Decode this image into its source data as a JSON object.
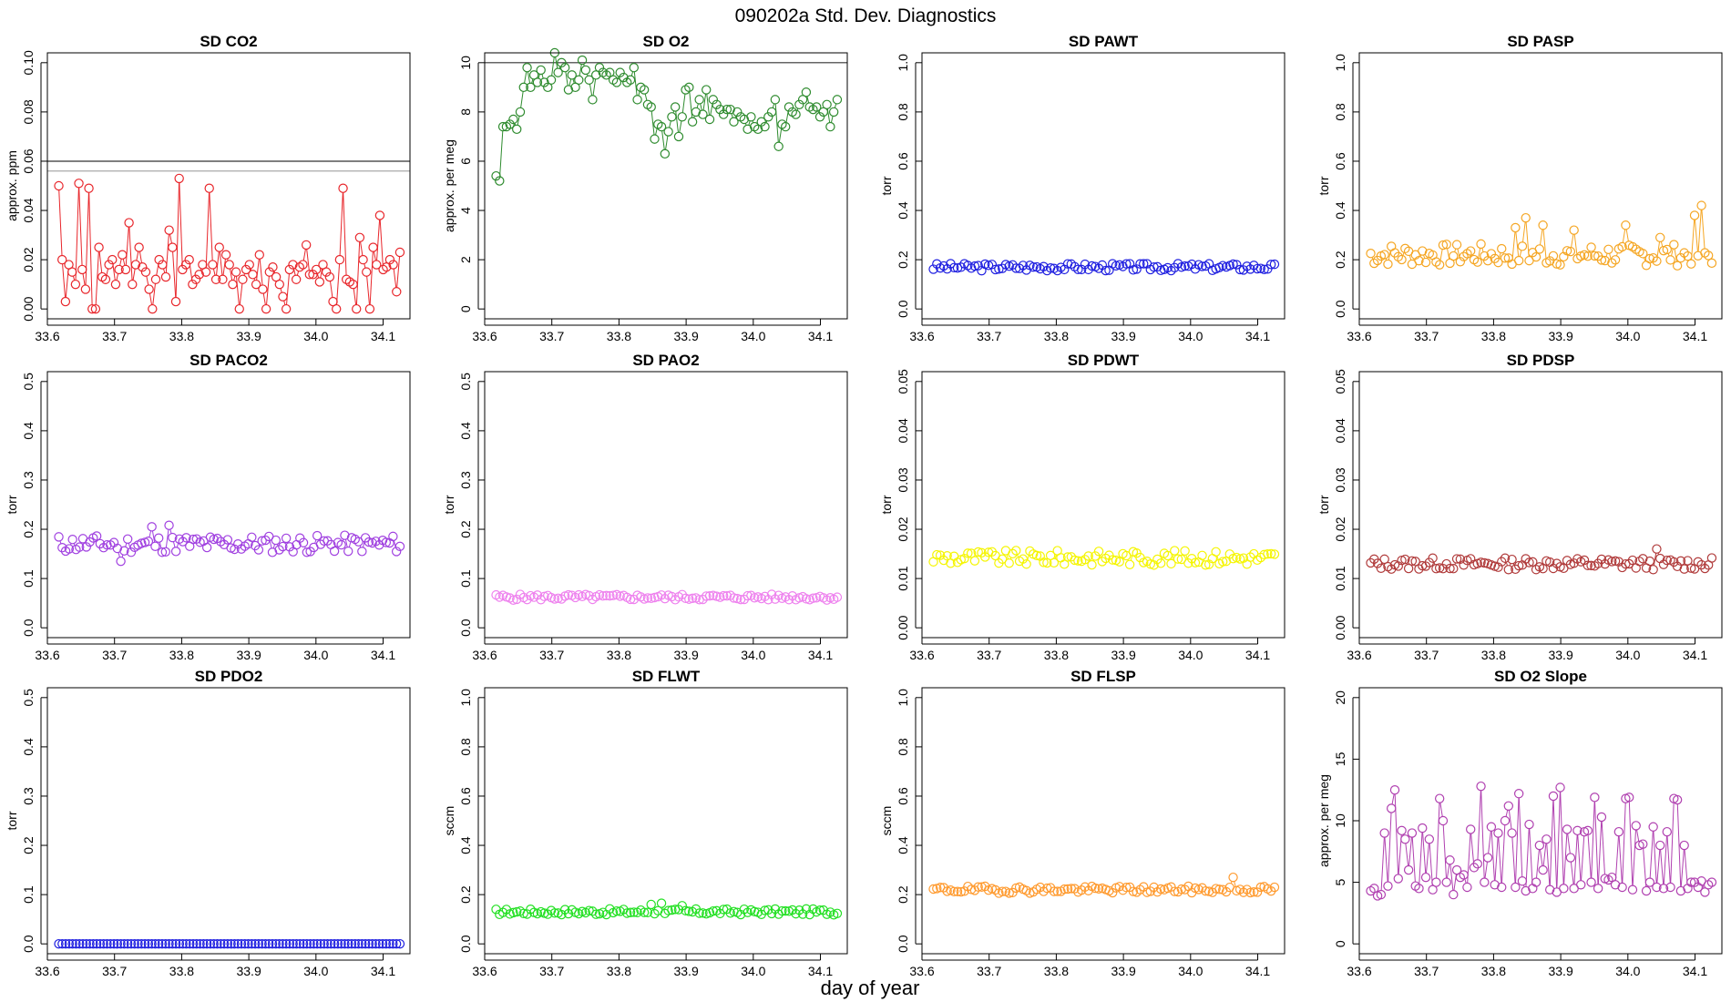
{
  "figure": {
    "title": "090202a   Std. Dev. Diagnostics",
    "xlabel": "day of year"
  },
  "chart_data": [
    {
      "id": "sd-co2",
      "type": "line",
      "title": "SD CO2",
      "ylabel": "approx. ppm",
      "color": "#e8262b",
      "xlim": [
        33.6,
        34.14
      ],
      "ylim": [
        0,
        0.1
      ],
      "xticks": [
        33.6,
        33.7,
        33.8,
        33.9,
        34.0,
        34.1
      ],
      "yticks": [
        0,
        0.02,
        0.04,
        0.06,
        0.08,
        0.1
      ],
      "ytick_labels": [
        "0.00",
        "0.02",
        "0.04",
        "0.06",
        "0.08",
        "0.10"
      ],
      "hlines": [
        {
          "y": 0.06,
          "color": "#333333"
        },
        {
          "y": 0.056,
          "color": "#aaaaaa"
        }
      ],
      "series": {
        "x_start": 33.617,
        "x_end": 34.125,
        "values": [
          0.05,
          0.02,
          0.003,
          0.018,
          0.015,
          0.01,
          0.051,
          0.016,
          0.008,
          0.049,
          0.0,
          0.0,
          0.025,
          0.013,
          0.012,
          0.018,
          0.02,
          0.01,
          0.016,
          0.022,
          0.016,
          0.035,
          0.01,
          0.018,
          0.025,
          0.017,
          0.015,
          0.008,
          0.0,
          0.012,
          0.02,
          0.018,
          0.013,
          0.032,
          0.025,
          0.003,
          0.053,
          0.016,
          0.018,
          0.02,
          0.01,
          0.012,
          0.014,
          0.018,
          0.015,
          0.049,
          0.018,
          0.012,
          0.025,
          0.012,
          0.022,
          0.018,
          0.01,
          0.015,
          0.0,
          0.012,
          0.016,
          0.018,
          0.014,
          0.01,
          0.022,
          0.008,
          0.0,
          0.015,
          0.017,
          0.013,
          0.01,
          0.005,
          0.0,
          0.016,
          0.018,
          0.012,
          0.017,
          0.018,
          0.026,
          0.014,
          0.014,
          0.016,
          0.011,
          0.018,
          0.015,
          0.013,
          0.003,
          0.0,
          0.02,
          0.049,
          0.012,
          0.011,
          0.01,
          0.0,
          0.029,
          0.02,
          0.015,
          0.0,
          0.025,
          0.018,
          0.038,
          0.016,
          0.017,
          0.02,
          0.018,
          0.007,
          0.023
        ]
      }
    },
    {
      "id": "sd-o2",
      "type": "line",
      "title": "SD O2",
      "ylabel": "approx. per meg",
      "color": "#2e8b2e",
      "xlim": [
        33.6,
        34.14
      ],
      "ylim": [
        0,
        10
      ],
      "xticks": [
        33.6,
        33.7,
        33.8,
        33.9,
        34.0,
        34.1
      ],
      "yticks": [
        0,
        2,
        4,
        6,
        8,
        10
      ],
      "ytick_labels": [
        "0",
        "2",
        "4",
        "6",
        "8",
        "10"
      ],
      "hlines": [
        {
          "y": 10,
          "color": "#333333"
        }
      ],
      "series": {
        "x_start": 33.617,
        "x_end": 34.125,
        "values": [
          5.4,
          5.2,
          7.4,
          7.4,
          7.5,
          7.7,
          7.3,
          8.0,
          9.0,
          9.8,
          9.0,
          9.5,
          9.2,
          9.7,
          9.2,
          9.0,
          9.3,
          10.4,
          9.6,
          10.0,
          9.8,
          8.9,
          9.5,
          9.0,
          9.3,
          10.1,
          9.7,
          9.3,
          8.5,
          9.5,
          9.8,
          9.6,
          9.5,
          9.6,
          9.3,
          9.2,
          9.6,
          9.4,
          9.2,
          9.3,
          9.8,
          8.5,
          9.0,
          8.9,
          8.3,
          8.2,
          6.9,
          7.5,
          7.4,
          6.3,
          7.2,
          7.8,
          8.2,
          7.0,
          7.8,
          8.9,
          9.0,
          7.6,
          8.0,
          8.5,
          7.9,
          8.9,
          7.7,
          8.5,
          8.3,
          8.1,
          7.9,
          8.1,
          8.1,
          7.6,
          8.0,
          7.8,
          7.7,
          7.3,
          7.8,
          7.4,
          7.3,
          7.6,
          7.4,
          7.8,
          8.0,
          8.5,
          6.6,
          7.5,
          7.4,
          8.2,
          8.0,
          7.9,
          8.3,
          8.5,
          8.8,
          8.2,
          8.1,
          8.2,
          7.8,
          8.0,
          8.3,
          7.4,
          8.0,
          8.5
        ]
      }
    },
    {
      "id": "sd-pawt",
      "type": "line",
      "title": "SD PAWT",
      "ylabel": "torr",
      "color": "#1f1fe0",
      "xlim": [
        33.6,
        34.14
      ],
      "ylim": [
        0,
        1
      ],
      "xticks": [
        33.6,
        33.7,
        33.8,
        33.9,
        34.0,
        34.1
      ],
      "yticks": [
        0,
        0.2,
        0.4,
        0.6,
        0.8,
        1.0
      ],
      "ytick_labels": [
        "0.0",
        "0.2",
        "0.4",
        "0.6",
        "0.8",
        "1.0"
      ],
      "hlines": [],
      "series": {
        "x_start": 33.617,
        "x_end": 34.125,
        "gen": {
          "base": 0.17,
          "noise": 0.015,
          "seed": 3
        }
      }
    },
    {
      "id": "sd-pasp",
      "type": "line",
      "title": "SD PASP",
      "ylabel": "torr",
      "color": "#f5a623",
      "xlim": [
        33.6,
        34.14
      ],
      "ylim": [
        0,
        1
      ],
      "xticks": [
        33.6,
        33.7,
        33.8,
        33.9,
        34.0,
        34.1
      ],
      "yticks": [
        0,
        0.2,
        0.4,
        0.6,
        0.8,
        1.0
      ],
      "ytick_labels": [
        "0.0",
        "0.2",
        "0.4",
        "0.6",
        "0.8",
        "1.0"
      ],
      "hlines": [],
      "series": {
        "x_start": 33.617,
        "x_end": 34.125,
        "gen": {
          "base": 0.22,
          "noise": 0.045,
          "seed": 7,
          "spikes": [
            [
              0.42,
              0.33
            ],
            [
              0.45,
              0.37
            ],
            [
              0.5,
              0.34
            ],
            [
              0.6,
              0.32
            ],
            [
              0.75,
              0.34
            ],
            [
              0.85,
              0.29
            ],
            [
              0.95,
              0.38
            ],
            [
              0.97,
              0.42
            ]
          ]
        }
      }
    },
    {
      "id": "sd-paco2",
      "type": "line",
      "title": "SD PACO2",
      "ylabel": "torr",
      "color": "#a040e0",
      "xlim": [
        33.6,
        34.14
      ],
      "ylim": [
        0,
        0.5
      ],
      "xticks": [
        33.6,
        33.7,
        33.8,
        33.9,
        34.0,
        34.1
      ],
      "yticks": [
        0,
        0.1,
        0.2,
        0.3,
        0.4,
        0.5
      ],
      "ytick_labels": [
        "0.0",
        "0.1",
        "0.2",
        "0.3",
        "0.4",
        "0.5"
      ],
      "hlines": [],
      "series": {
        "x_start": 33.617,
        "x_end": 34.125,
        "gen": {
          "base": 0.17,
          "noise": 0.018,
          "seed": 11,
          "spikes": [
            [
              0.27,
              0.205
            ],
            [
              0.32,
              0.208
            ],
            [
              0.18,
              0.135
            ]
          ]
        }
      }
    },
    {
      "id": "sd-pao2",
      "type": "line",
      "title": "SD PAO2",
      "ylabel": "torr",
      "color": "#ee82ee",
      "xlim": [
        33.6,
        34.14
      ],
      "ylim": [
        0,
        0.5
      ],
      "xticks": [
        33.6,
        33.7,
        33.8,
        33.9,
        34.0,
        34.1
      ],
      "yticks": [
        0,
        0.1,
        0.2,
        0.3,
        0.4,
        0.5
      ],
      "ytick_labels": [
        "0.0",
        "0.1",
        "0.2",
        "0.3",
        "0.4",
        "0.5"
      ],
      "hlines": [],
      "series": {
        "x_start": 33.617,
        "x_end": 34.125,
        "gen": {
          "base": 0.062,
          "noise": 0.006,
          "seed": 5
        }
      }
    },
    {
      "id": "sd-pdwt",
      "type": "line",
      "title": "SD PDWT",
      "ylabel": "torr",
      "color": "#f5f500",
      "xlim": [
        33.6,
        34.14
      ],
      "ylim": [
        0,
        0.05
      ],
      "xticks": [
        33.6,
        33.7,
        33.8,
        33.9,
        34.0,
        34.1
      ],
      "yticks": [
        0,
        0.01,
        0.02,
        0.03,
        0.04,
        0.05
      ],
      "ytick_labels": [
        "0.00",
        "0.01",
        "0.02",
        "0.03",
        "0.04",
        "0.05"
      ],
      "hlines": [],
      "series": {
        "x_start": 33.617,
        "x_end": 34.125,
        "gen": {
          "base": 0.0142,
          "noise": 0.0015,
          "seed": 9
        }
      }
    },
    {
      "id": "sd-pdsp",
      "type": "line",
      "title": "SD PDSP",
      "ylabel": "torr",
      "color": "#b03a3a",
      "xlim": [
        33.6,
        34.14
      ],
      "ylim": [
        0,
        0.05
      ],
      "xticks": [
        33.6,
        33.7,
        33.8,
        33.9,
        34.0,
        34.1
      ],
      "yticks": [
        0,
        0.01,
        0.02,
        0.03,
        0.04,
        0.05
      ],
      "ytick_labels": [
        "0.00",
        "0.01",
        "0.02",
        "0.03",
        "0.04",
        "0.05"
      ],
      "hlines": [],
      "series": {
        "x_start": 33.617,
        "x_end": 34.125,
        "gen": {
          "base": 0.013,
          "noise": 0.0012,
          "seed": 13,
          "spikes": [
            [
              0.84,
              0.016
            ]
          ]
        }
      }
    },
    {
      "id": "sd-pdo2",
      "type": "line",
      "title": "SD PDO2",
      "ylabel": "torr",
      "color": "#1f1fe0",
      "xlim": [
        33.6,
        34.14
      ],
      "ylim": [
        0,
        0.5
      ],
      "xticks": [
        33.6,
        33.7,
        33.8,
        33.9,
        34.0,
        34.1
      ],
      "yticks": [
        0,
        0.1,
        0.2,
        0.3,
        0.4,
        0.5
      ],
      "ytick_labels": [
        "0.0",
        "0.1",
        "0.2",
        "0.3",
        "0.4",
        "0.5"
      ],
      "hlines": [],
      "series": {
        "x_start": 33.617,
        "x_end": 34.125,
        "gen": {
          "base": 0.0,
          "noise": 0.0,
          "seed": 1
        }
      }
    },
    {
      "id": "sd-flwt",
      "type": "line",
      "title": "SD FLWT",
      "ylabel": "sccm",
      "color": "#22e022",
      "xlim": [
        33.6,
        34.14
      ],
      "ylim": [
        0,
        1
      ],
      "xticks": [
        33.6,
        33.7,
        33.8,
        33.9,
        34.0,
        34.1
      ],
      "yticks": [
        0,
        0.2,
        0.4,
        0.6,
        0.8,
        1.0
      ],
      "ytick_labels": [
        "0.0",
        "0.2",
        "0.4",
        "0.6",
        "0.8",
        "1.0"
      ],
      "hlines": [],
      "series": {
        "x_start": 33.617,
        "x_end": 34.125,
        "gen": {
          "base": 0.13,
          "noise": 0.012,
          "seed": 17,
          "spikes": [
            [
              0.45,
              0.16
            ],
            [
              0.48,
              0.165
            ],
            [
              0.55,
              0.155
            ]
          ]
        }
      }
    },
    {
      "id": "sd-flsp",
      "type": "line",
      "title": "SD FLSP",
      "ylabel": "sccm",
      "color": "#ff9a2e",
      "xlim": [
        33.6,
        34.14
      ],
      "ylim": [
        0,
        1
      ],
      "xticks": [
        33.6,
        33.7,
        33.8,
        33.9,
        34.0,
        34.1
      ],
      "yticks": [
        0,
        0.2,
        0.4,
        0.6,
        0.8,
        1.0
      ],
      "ytick_labels": [
        "0.0",
        "0.2",
        "0.4",
        "0.6",
        "0.8",
        "1.0"
      ],
      "hlines": [],
      "series": {
        "x_start": 33.617,
        "x_end": 34.125,
        "gen": {
          "base": 0.22,
          "noise": 0.014,
          "seed": 19,
          "spikes": [
            [
              0.88,
              0.27
            ]
          ]
        }
      }
    },
    {
      "id": "sd-o2-slope",
      "type": "line",
      "title": "SD O2 Slope",
      "ylabel": "approx. per meg",
      "color": "#b040b0",
      "xlim": [
        33.6,
        34.14
      ],
      "ylim": [
        0,
        20
      ],
      "xticks": [
        33.6,
        33.7,
        33.8,
        33.9,
        34.0,
        34.1
      ],
      "yticks": [
        0,
        5,
        10,
        15,
        20
      ],
      "ytick_labels": [
        "0",
        "5",
        "10",
        "15",
        "20"
      ],
      "hlines": [],
      "series": {
        "x_start": 33.617,
        "x_end": 34.125,
        "values": [
          4.3,
          4.5,
          3.9,
          4.0,
          9.0,
          4.7,
          11.0,
          12.5,
          5.3,
          9.2,
          8.5,
          6.0,
          9.0,
          4.7,
          4.5,
          9.4,
          5.4,
          8.5,
          4.4,
          5.0,
          11.8,
          10.0,
          5.0,
          6.8,
          4.0,
          6.0,
          5.4,
          5.6,
          4.6,
          9.3,
          6.2,
          6.5,
          12.8,
          5.0,
          7.0,
          9.5,
          4.8,
          9.0,
          4.6,
          10.0,
          11.2,
          9.0,
          4.6,
          12.2,
          5.1,
          4.3,
          9.7,
          4.5,
          5.0,
          8.0,
          6.0,
          8.5,
          4.4,
          12.0,
          4.2,
          12.7,
          4.5,
          9.3,
          7.0,
          4.5,
          9.2,
          4.8,
          9.1,
          9.2,
          5.0,
          11.9,
          4.5,
          10.3,
          5.3,
          5.2,
          5.4,
          4.8,
          9.1,
          4.6,
          11.8,
          11.9,
          4.4,
          9.6,
          8.0,
          8.1,
          4.3,
          5.0,
          9.5,
          4.6,
          8.0,
          4.5,
          9.1,
          4.6,
          11.8,
          11.7,
          4.3,
          8.0,
          4.5,
          5.0,
          5.0,
          4.6,
          5.1,
          4.2,
          4.8,
          5.0
        ]
      }
    }
  ]
}
